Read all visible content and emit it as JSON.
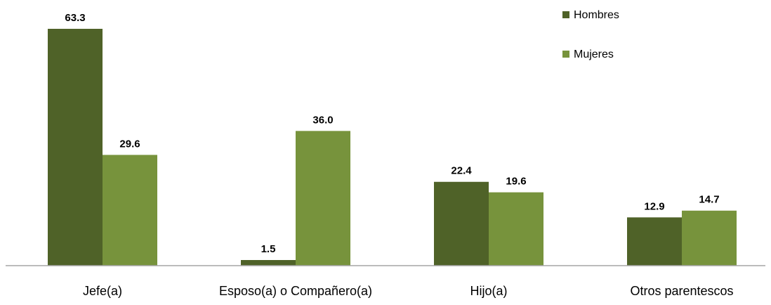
{
  "chart_data": {
    "type": "bar",
    "categories": [
      "Jefe(a)",
      "Esposo(a) o Compañero(a)",
      "Hijo(a)",
      "Otros parentescos"
    ],
    "series": [
      {
        "name": "Hombres",
        "values": [
          63.3,
          1.5,
          22.4,
          12.9
        ],
        "labels": [
          "63.3",
          "1.5",
          "22.4",
          "12.9"
        ],
        "color": "#4f6228"
      },
      {
        "name": "Mujeres",
        "values": [
          29.6,
          36.0,
          19.6,
          14.7
        ],
        "labels": [
          "29.6",
          "36.0",
          "19.6",
          "14.7"
        ],
        "color": "#77933c"
      }
    ],
    "title": "",
    "xlabel": "",
    "ylabel": "",
    "ylim": [
      0,
      63.3
    ],
    "grid": false,
    "legend": "top-right",
    "axis_color": "#a6a6a6"
  }
}
